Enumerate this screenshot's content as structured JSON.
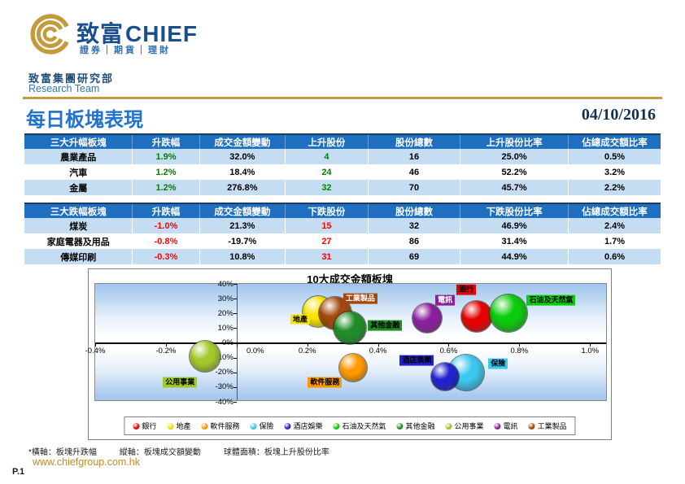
{
  "brand": {
    "logo_cn": "致富",
    "logo_en": "CHIEF",
    "tagline": "證券｜期貨｜理財",
    "dept_cn": "致富集團研究部",
    "dept_en": "Research Team"
  },
  "page": {
    "title": "每日板塊表現",
    "date": "04/10/2016"
  },
  "colors": {
    "header_bg": "#1E6FC0",
    "header_top": "#1A3A66",
    "row_alt": "#C5DDF2",
    "up": "#008000",
    "down": "#FF0000"
  },
  "gainers_table": {
    "headers": [
      "三大升幅板塊",
      "升跌幅",
      "成交金額變動",
      "上升股份",
      "股份總數",
      "上升股份比率",
      "佔總成交額比率"
    ],
    "rows": [
      [
        "農業產品",
        "1.9%",
        "32.0%",
        "4",
        "16",
        "25.0%",
        "0.5%"
      ],
      [
        "汽車",
        "1.2%",
        "18.4%",
        "24",
        "46",
        "52.2%",
        "3.2%"
      ],
      [
        "金屬",
        "1.2%",
        "276.8%",
        "32",
        "70",
        "45.7%",
        "2.2%"
      ]
    ]
  },
  "losers_table": {
    "headers": [
      "三大跌幅板塊",
      "升跌幅",
      "成交金額變動",
      "下跌股份",
      "股份總數",
      "下跌股份比率",
      "佔總成交額比率"
    ],
    "rows": [
      [
        "煤炭",
        "-1.0%",
        "21.3%",
        "15",
        "32",
        "46.9%",
        "2.4%"
      ],
      [
        "家庭電器及用品",
        "-0.8%",
        "-19.7%",
        "27",
        "86",
        "31.4%",
        "1.7%"
      ],
      [
        "傳媒印刷",
        "-0.3%",
        "10.8%",
        "31",
        "69",
        "44.9%",
        "0.6%"
      ]
    ]
  },
  "chart_data": {
    "type": "bubble",
    "title": "10大成交金額板塊",
    "x_axis": {
      "min": -0.4,
      "max": 1.05,
      "unit": "%",
      "ticks": [
        {
          "v": -0.4,
          "label": "-0.4%"
        },
        {
          "v": -0.2,
          "label": "-0.2%"
        },
        {
          "v": 0,
          "label": "0.0%"
        },
        {
          "v": 0.2,
          "label": "0.2%"
        },
        {
          "v": 0.4,
          "label": "0.4%"
        },
        {
          "v": 0.6,
          "label": "0.6%"
        },
        {
          "v": 0.8,
          "label": "0.8%"
        },
        {
          "v": 1.0,
          "label": "1.0%"
        }
      ]
    },
    "y_axis": {
      "min": -40,
      "max": 40,
      "unit": "%",
      "ticks": [
        {
          "v": 40,
          "label": "40%"
        },
        {
          "v": 30,
          "label": "30%"
        },
        {
          "v": 20,
          "label": "20%"
        },
        {
          "v": 10,
          "label": "10%"
        },
        {
          "v": 0,
          "label": "0%"
        },
        {
          "v": -10,
          "label": "-10%"
        },
        {
          "v": -20,
          "label": "-20%"
        },
        {
          "v": -30,
          "label": "-30%"
        },
        {
          "v": -40,
          "label": "-40%"
        }
      ]
    },
    "bubbles": [
      {
        "id": "property",
        "name": "地產",
        "x": 0.23,
        "y": 21,
        "r": 19,
        "color": "#F7E400",
        "label": {
          "x": 0.18,
          "y": 16,
          "fg": "#000000"
        }
      },
      {
        "id": "industrial-goods",
        "name": "工業製品",
        "x": 0.28,
        "y": 20,
        "r": 20,
        "color": "#A3470E",
        "label": {
          "x": 0.35,
          "y": 30,
          "fg": "#FFFFFF"
        }
      },
      {
        "id": "other-financials",
        "name": "其他金融",
        "x": 0.32,
        "y": 10,
        "r": 20,
        "color": "#1F8C28",
        "label": {
          "x": 0.42,
          "y": 12,
          "fg": "#000000"
        }
      },
      {
        "id": "telecom",
        "name": "電訊",
        "x": 0.54,
        "y": 17,
        "r": 18,
        "color": "#8B1F9E",
        "label": {
          "x": 0.59,
          "y": 29,
          "fg": "#FFFFFF"
        }
      },
      {
        "id": "bank",
        "name": "銀行",
        "x": 0.68,
        "y": 18,
        "r": 19,
        "color": "#E60000",
        "label": {
          "x": 0.65,
          "y": 36,
          "fg": "#000000"
        }
      },
      {
        "id": "oil-gas",
        "name": "石油及天然氣",
        "x": 0.77,
        "y": 20,
        "r": 23,
        "color": "#0ACC0A",
        "label": {
          "x": 0.89,
          "y": 29,
          "fg": "#000000"
        }
      },
      {
        "id": "utilities",
        "name": "公用事業",
        "x": -0.09,
        "y": -9,
        "r": 19,
        "color": "#A2C82A",
        "label": {
          "x": -0.16,
          "y": -27,
          "fg": "#000000"
        }
      },
      {
        "id": "software-services",
        "name": "軟件服務",
        "x": 0.33,
        "y": -17,
        "r": 17,
        "color": "#FF9900",
        "label": {
          "x": 0.25,
          "y": -27,
          "fg": "#000000"
        }
      },
      {
        "id": "insurance",
        "name": "保險",
        "x": 0.65,
        "y": -20,
        "r": 22,
        "color": "#3CC8EE",
        "label": {
          "x": 0.74,
          "y": -14,
          "fg": "#000000"
        }
      },
      {
        "id": "hotels-entertainment",
        "name": "酒店娛樂",
        "x": 0.59,
        "y": -23,
        "r": 17,
        "color": "#2121CE",
        "label": {
          "x": 0.51,
          "y": -12,
          "fg": "#000000"
        }
      }
    ],
    "legend": [
      {
        "id": "bank",
        "name": "銀行",
        "color": "#E60000"
      },
      {
        "id": "property",
        "name": "地產",
        "color": "#F7E400"
      },
      {
        "id": "software-services",
        "name": "軟件服務",
        "color": "#FF9900"
      },
      {
        "id": "insurance",
        "name": "保險",
        "color": "#3CC8EE"
      },
      {
        "id": "hotels-entertainment",
        "name": "酒店娛樂",
        "color": "#2121CE"
      },
      {
        "id": "oil-gas",
        "name": "石油及天然氣",
        "color": "#0ACC0A"
      },
      {
        "id": "other-financials",
        "name": "其他金融",
        "color": "#1F8C28"
      },
      {
        "id": "utilities",
        "name": "公用事業",
        "color": "#A2C82A"
      },
      {
        "id": "telecom",
        "name": "電訊",
        "color": "#8B1F9E"
      },
      {
        "id": "industrial-goods",
        "name": "工業製品",
        "color": "#A3470E"
      }
    ]
  },
  "footnote": {
    "x_note": "*橫軸：板塊升跌幅",
    "y_note": "縱軸：板塊成交額變動",
    "size_note": "球體面積：板塊上升股份比率"
  },
  "footer": {
    "url": "www.chiefgroup.com.hk",
    "page_no": "P.1"
  }
}
